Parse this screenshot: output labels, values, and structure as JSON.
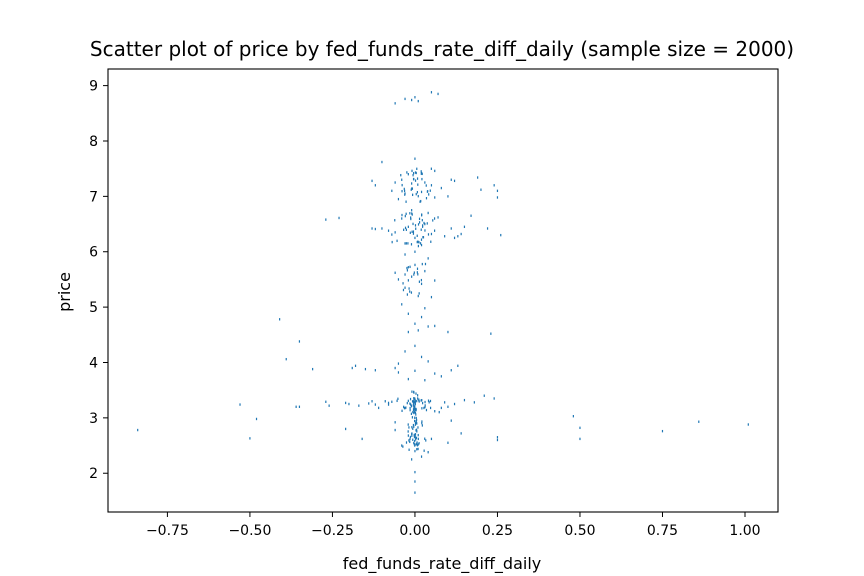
{
  "chart_data": {
    "type": "scatter",
    "title": "Scatter plot of price by fed_funds_rate_diff_daily (sample size = 2000)",
    "xlabel": "fed_funds_rate_diff_daily",
    "ylabel": "price",
    "xlim": [
      -0.93,
      1.1
    ],
    "ylim": [
      1.3,
      9.3
    ],
    "xticks": [
      -0.75,
      -0.5,
      -0.25,
      0.0,
      0.25,
      0.5,
      0.75,
      1.0
    ],
    "xtick_labels": [
      "−0.75",
      "−0.50",
      "−0.25",
      "0.00",
      "0.25",
      "0.50",
      "0.75",
      "1.00"
    ],
    "yticks": [
      2,
      3,
      4,
      5,
      6,
      7,
      8,
      9
    ],
    "ytick_labels": [
      "2",
      "3",
      "4",
      "5",
      "6",
      "7",
      "8",
      "9"
    ],
    "grid": false,
    "legend": "none",
    "marker_color": "#1f77b4",
    "points": [
      [
        -0.84,
        2.78
      ],
      [
        -0.53,
        3.24
      ],
      [
        -0.5,
        2.63
      ],
      [
        -0.48,
        2.98
      ],
      [
        -0.41,
        4.78
      ],
      [
        -0.39,
        4.06
      ],
      [
        -0.35,
        4.38
      ],
      [
        -0.36,
        3.2
      ],
      [
        -0.35,
        3.2
      ],
      [
        -0.31,
        3.88
      ],
      [
        -0.27,
        3.29
      ],
      [
        -0.26,
        3.22
      ],
      [
        -0.27,
        6.58
      ],
      [
        -0.23,
        6.61
      ],
      [
        -0.21,
        3.27
      ],
      [
        -0.21,
        2.8
      ],
      [
        -0.19,
        3.9
      ],
      [
        -0.18,
        3.94
      ],
      [
        -0.2,
        3.25
      ],
      [
        -0.17,
        3.22
      ],
      [
        -0.16,
        2.62
      ],
      [
        -0.15,
        3.88
      ],
      [
        -0.12,
        3.86
      ],
      [
        -0.14,
        3.26
      ],
      [
        -0.12,
        3.24
      ],
      [
        -0.13,
        7.28
      ],
      [
        -0.12,
        7.2
      ],
      [
        -0.13,
        6.42
      ],
      [
        -0.12,
        6.41
      ],
      [
        -0.1,
        7.62
      ],
      [
        -0.1,
        6.42
      ],
      [
        -0.08,
        3.27
      ],
      [
        -0.07,
        3.29
      ],
      [
        -0.06,
        3.9
      ],
      [
        -0.05,
        3.82
      ],
      [
        -0.08,
        3.24
      ],
      [
        -0.06,
        2.78
      ],
      [
        -0.07,
        7.1
      ],
      [
        -0.06,
        7.25
      ],
      [
        -0.08,
        6.38
      ],
      [
        -0.07,
        6.31
      ],
      [
        -0.06,
        5.62
      ],
      [
        -0.05,
        5.5
      ],
      [
        -0.06,
        2.92
      ],
      [
        -0.06,
        8.68
      ],
      [
        -0.03,
        8.76
      ],
      [
        -0.01,
        8.74
      ],
      [
        0.0,
        8.79
      ],
      [
        0.01,
        8.72
      ],
      [
        0.05,
        8.88
      ],
      [
        0.07,
        8.85
      ],
      [
        0.0,
        7.68
      ],
      [
        -0.02,
        7.4
      ],
      [
        0.02,
        7.42
      ],
      [
        -0.04,
        7.3
      ],
      [
        0.03,
        7.25
      ],
      [
        0.06,
        7.46
      ],
      [
        0.05,
        7.2
      ],
      [
        -0.03,
        7.05
      ],
      [
        0.02,
        7.08
      ],
      [
        0.08,
        7.15
      ],
      [
        -0.05,
        6.95
      ],
      [
        0.06,
        6.98
      ],
      [
        -0.01,
        6.75
      ],
      [
        0.04,
        6.7
      ],
      [
        -0.04,
        6.6
      ],
      [
        0.07,
        6.62
      ],
      [
        -0.02,
        6.45
      ],
      [
        0.03,
        6.5
      ],
      [
        -0.06,
        6.35
      ],
      [
        0.05,
        6.32
      ],
      [
        0.0,
        6.25
      ],
      [
        0.09,
        6.28
      ],
      [
        -0.03,
        6.15
      ],
      [
        0.02,
        6.12
      ],
      [
        0.0,
        6.0
      ],
      [
        -0.03,
        5.95
      ],
      [
        0.04,
        5.88
      ],
      [
        -0.02,
        5.72
      ],
      [
        0.03,
        5.65
      ],
      [
        -0.01,
        5.55
      ],
      [
        0.02,
        5.42
      ],
      [
        0.06,
        5.48
      ],
      [
        -0.03,
        5.35
      ],
      [
        0.01,
        5.2
      ],
      [
        0.05,
        5.18
      ],
      [
        -0.04,
        5.05
      ],
      [
        0.03,
        4.98
      ],
      [
        -0.02,
        4.88
      ],
      [
        0.02,
        4.82
      ],
      [
        0.0,
        4.7
      ],
      [
        0.04,
        4.65
      ],
      [
        -0.02,
        4.55
      ],
      [
        0.01,
        4.58
      ],
      [
        0.06,
        4.66
      ],
      [
        0.1,
        4.55
      ],
      [
        0.0,
        4.3
      ],
      [
        -0.03,
        4.2
      ],
      [
        0.02,
        4.1
      ],
      [
        -0.05,
        3.98
      ],
      [
        0.04,
        4.02
      ],
      [
        0.0,
        3.85
      ],
      [
        0.06,
        3.8
      ],
      [
        -0.02,
        3.7
      ],
      [
        0.03,
        3.68
      ],
      [
        0.08,
        3.75
      ],
      [
        0.11,
        7.3
      ],
      [
        0.12,
        7.28
      ],
      [
        0.1,
        7.0
      ],
      [
        0.12,
        6.25
      ],
      [
        0.11,
        6.42
      ],
      [
        0.14,
        6.32
      ],
      [
        0.15,
        6.45
      ],
      [
        0.13,
        6.28
      ],
      [
        0.17,
        6.65
      ],
      [
        0.19,
        7.34
      ],
      [
        0.2,
        7.12
      ],
      [
        0.22,
        6.42
      ],
      [
        0.24,
        7.2
      ],
      [
        0.25,
        7.1
      ],
      [
        0.25,
        6.98
      ],
      [
        0.26,
        6.3
      ],
      [
        0.23,
        4.52
      ],
      [
        0.11,
        3.86
      ],
      [
        0.13,
        3.94
      ],
      [
        0.1,
        3.2
      ],
      [
        0.12,
        3.25
      ],
      [
        0.15,
        3.32
      ],
      [
        0.18,
        3.28
      ],
      [
        0.21,
        3.4
      ],
      [
        0.24,
        3.35
      ],
      [
        0.25,
        2.65
      ],
      [
        0.25,
        2.6
      ],
      [
        0.11,
        2.95
      ],
      [
        0.14,
        2.72
      ],
      [
        0.1,
        2.55
      ],
      [
        0.48,
        3.03
      ],
      [
        0.5,
        2.82
      ],
      [
        0.5,
        2.62
      ],
      [
        0.75,
        2.76
      ],
      [
        0.86,
        2.93
      ],
      [
        1.01,
        2.88
      ],
      [
        0.0,
        1.65
      ],
      [
        0.0,
        1.85
      ],
      [
        0.0,
        2.02
      ],
      [
        -0.01,
        2.25
      ],
      [
        0.02,
        2.3
      ],
      [
        0.0,
        2.4
      ],
      [
        0.04,
        2.38
      ],
      [
        -0.04,
        2.5
      ],
      [
        0.01,
        2.52
      ],
      [
        0.05,
        2.62
      ],
      [
        -0.02,
        2.68
      ],
      [
        0.06,
        3.12
      ],
      [
        0.08,
        3.18
      ],
      [
        0.09,
        3.28
      ],
      [
        -0.09,
        3.3
      ],
      [
        -0.11,
        3.18
      ],
      [
        -0.13,
        3.3
      ]
    ],
    "dense_groups": [
      {
        "x_center": 0.0,
        "x_spread": 0.09,
        "y_min": 6.9,
        "y_max": 7.5,
        "count": 40
      },
      {
        "x_center": 0.0,
        "x_spread": 0.09,
        "y_min": 6.1,
        "y_max": 6.7,
        "count": 50
      },
      {
        "x_center": 0.0,
        "x_spread": 0.06,
        "y_min": 5.2,
        "y_max": 5.8,
        "count": 22
      },
      {
        "x_center": 0.0,
        "x_spread": 0.08,
        "y_min": 3.1,
        "y_max": 3.35,
        "count": 45
      },
      {
        "x_center": 0.0,
        "x_spread": 0.05,
        "y_min": 2.4,
        "y_max": 3.0,
        "count": 30
      },
      {
        "x_center": 0.0,
        "x_spread": 0.012,
        "y_min": 2.5,
        "y_max": 3.5,
        "count": 60
      }
    ]
  }
}
